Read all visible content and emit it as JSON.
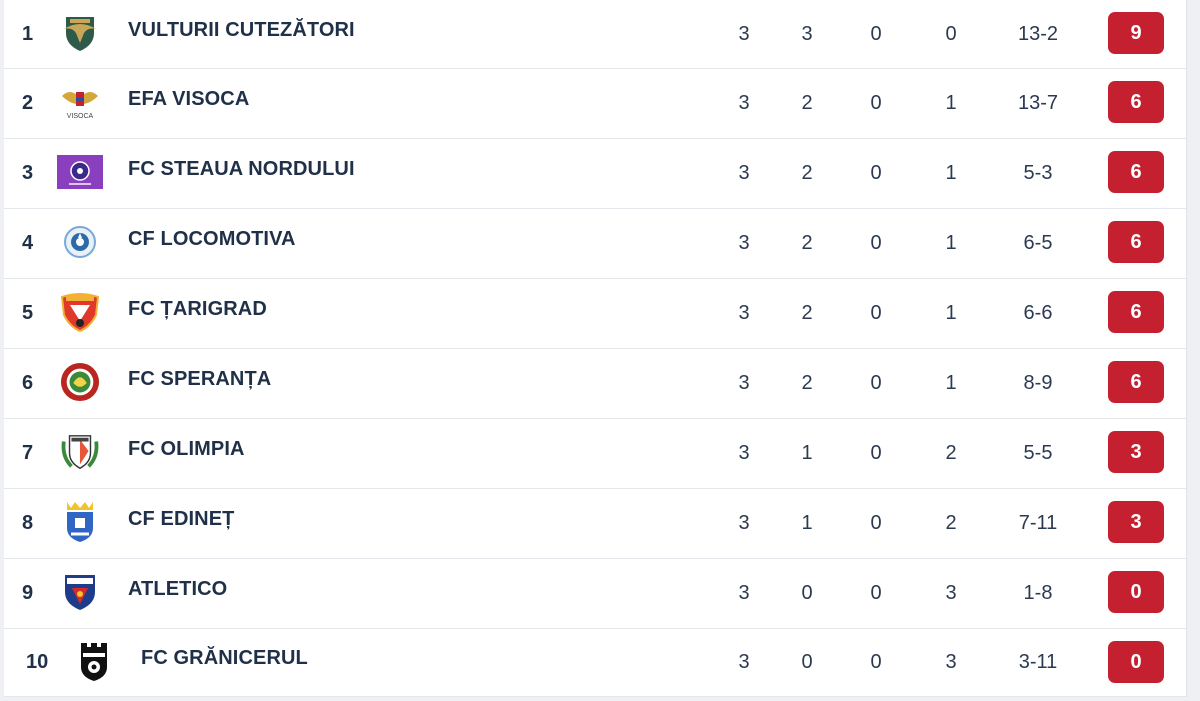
{
  "accent_color": "#c4202f",
  "standings": [
    {
      "position": "1",
      "team": "VULTURII CUTEZĂTORI",
      "logo": "eagle-shield-icon",
      "played": "3",
      "won": "3",
      "drawn": "0",
      "lost": "0",
      "goals": "13-2",
      "points": "9"
    },
    {
      "position": "2",
      "team": "EFA VISOCA",
      "logo": "winged-crest-icon",
      "logo_text": "VISOCA",
      "played": "3",
      "won": "2",
      "drawn": "0",
      "lost": "1",
      "goals": "13-7",
      "points": "6"
    },
    {
      "position": "3",
      "team": "FC STEAUA NORDULUI",
      "logo": "purple-banner-icon",
      "played": "3",
      "won": "2",
      "drawn": "0",
      "lost": "1",
      "goals": "5-3",
      "points": "6"
    },
    {
      "position": "4",
      "team": "CF LOCOMOTIVA",
      "logo": "round-ball-crest-icon",
      "played": "3",
      "won": "2",
      "drawn": "0",
      "lost": "1",
      "goals": "6-5",
      "points": "6"
    },
    {
      "position": "5",
      "team": "FC ȚARIGRAD",
      "logo": "red-shield-icon",
      "played": "3",
      "won": "2",
      "drawn": "0",
      "lost": "1",
      "goals": "6-6",
      "points": "6"
    },
    {
      "position": "6",
      "team": "FC SPERANȚA",
      "logo": "red-round-crest-icon",
      "played": "3",
      "won": "2",
      "drawn": "0",
      "lost": "1",
      "goals": "8-9",
      "points": "6"
    },
    {
      "position": "7",
      "team": "FC OLIMPIA",
      "logo": "laurel-shield-icon",
      "played": "3",
      "won": "1",
      "drawn": "0",
      "lost": "2",
      "goals": "5-5",
      "points": "3"
    },
    {
      "position": "8",
      "team": "CF EDINEȚ",
      "logo": "crowned-blue-shield-icon",
      "played": "3",
      "won": "1",
      "drawn": "0",
      "lost": "2",
      "goals": "7-11",
      "points": "3"
    },
    {
      "position": "9",
      "team": "ATLETICO",
      "logo": "blue-red-shield-icon",
      "played": "3",
      "won": "0",
      "drawn": "0",
      "lost": "3",
      "goals": "1-8",
      "points": "0"
    },
    {
      "position": "10",
      "team": "FC GRĂNICERUL",
      "logo": "black-castle-shield-icon",
      "played": "3",
      "won": "0",
      "drawn": "0",
      "lost": "3",
      "goals": "3-11",
      "points": "0"
    }
  ]
}
